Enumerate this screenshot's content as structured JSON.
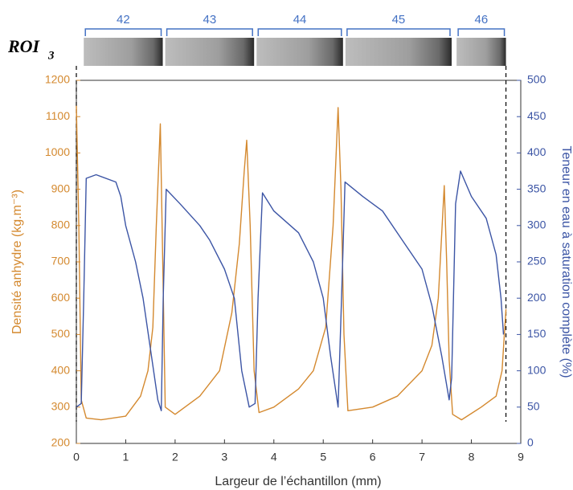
{
  "chart_data": {
    "type": "line",
    "strip_label": "ROI",
    "strip_label_sub": "3",
    "rings": [
      {
        "label": "42",
        "range": [
          0.15,
          1.75
        ]
      },
      {
        "label": "43",
        "range": [
          1.8,
          3.6
        ]
      },
      {
        "label": "44",
        "range": [
          3.65,
          5.4
        ]
      },
      {
        "label": "45",
        "range": [
          5.45,
          7.6
        ]
      },
      {
        "label": "46",
        "range": [
          7.7,
          8.7
        ]
      }
    ],
    "ring_color": "#4472c4",
    "dashed_lines": [
      0,
      8.7
    ],
    "xlabel": "Largeur de l’échantillon (mm)",
    "ylabel": "Densité anhydre (kg.m⁻³)",
    "y2label": "Teneur en eau à saturation complète (%)",
    "xlim": [
      0,
      9
    ],
    "xticks": [
      0,
      1,
      2,
      3,
      4,
      5,
      6,
      7,
      8,
      9
    ],
    "ylim": [
      200,
      1200
    ],
    "yticks": [
      200,
      300,
      400,
      500,
      600,
      700,
      800,
      900,
      1000,
      1100,
      1200
    ],
    "y2lim": [
      0,
      500
    ],
    "y2ticks": [
      0,
      50,
      100,
      150,
      200,
      250,
      300,
      350,
      400,
      450,
      500
    ],
    "grid": false,
    "series": [
      {
        "name": "Densité anhydre",
        "color": "#d4892f",
        "axis": "y",
        "x": [
          0,
          0.05,
          0.1,
          0.2,
          0.5,
          1.0,
          1.3,
          1.45,
          1.55,
          1.62,
          1.7,
          1.75,
          1.8,
          2.0,
          2.5,
          2.9,
          3.15,
          3.3,
          3.4,
          3.45,
          3.52,
          3.6,
          3.7,
          4.0,
          4.5,
          4.8,
          5.05,
          5.2,
          5.3,
          5.36,
          5.42,
          5.5,
          6.0,
          6.5,
          7.0,
          7.2,
          7.33,
          7.45,
          7.5,
          7.55,
          7.62,
          7.8,
          8.2,
          8.5,
          8.62,
          8.7
        ],
        "values": [
          1130,
          800,
          320,
          270,
          265,
          275,
          330,
          400,
          520,
          800,
          1080,
          700,
          300,
          280,
          330,
          400,
          560,
          750,
          950,
          1035,
          800,
          400,
          285,
          300,
          350,
          400,
          520,
          800,
          1125,
          900,
          500,
          290,
          300,
          330,
          400,
          470,
          600,
          910,
          700,
          430,
          280,
          265,
          300,
          330,
          400,
          570
        ]
      },
      {
        "name": "Teneur en eau",
        "color": "#3c55a5",
        "axis": "y2",
        "x": [
          0,
          0.1,
          0.15,
          0.2,
          0.4,
          0.8,
          0.9,
          1.0,
          1.2,
          1.35,
          1.5,
          1.65,
          1.72,
          1.76,
          1.82,
          2.1,
          2.5,
          2.7,
          3.0,
          3.2,
          3.35,
          3.5,
          3.62,
          3.68,
          3.77,
          4.0,
          4.5,
          4.8,
          5.0,
          5.15,
          5.3,
          5.37,
          5.44,
          5.8,
          6.2,
          6.6,
          7.0,
          7.2,
          7.4,
          7.55,
          7.6,
          7.68,
          7.78,
          8.0,
          8.3,
          8.5,
          8.6,
          8.65
        ],
        "values": [
          50,
          55,
          200,
          365,
          370,
          360,
          340,
          300,
          250,
          200,
          130,
          60,
          45,
          200,
          350,
          330,
          300,
          280,
          240,
          200,
          100,
          50,
          55,
          200,
          345,
          320,
          290,
          250,
          200,
          120,
          50,
          200,
          360,
          340,
          320,
          280,
          240,
          190,
          120,
          60,
          90,
          330,
          375,
          340,
          310,
          260,
          200,
          150
        ]
      }
    ]
  }
}
